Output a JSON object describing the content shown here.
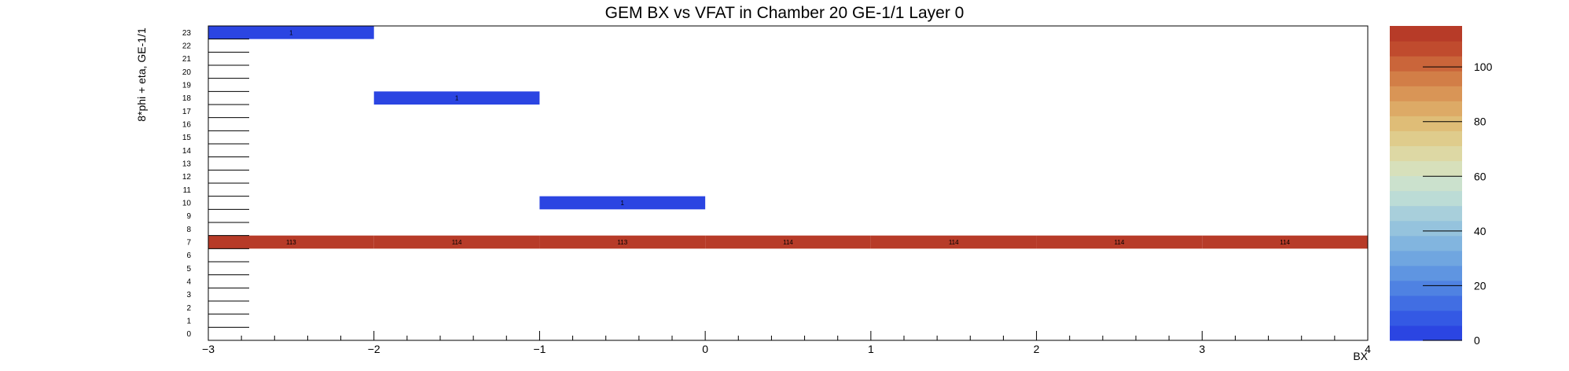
{
  "chart_data": {
    "type": "heatmap",
    "title": "GEM BX vs VFAT in Chamber 20 GE-1/1 Layer 0",
    "xlabel": "BX",
    "ylabel": "8*phi + eta, GE-1/1",
    "xlim": [
      -3,
      4
    ],
    "ylim": [
      0,
      24
    ],
    "x_tick_labels": [
      "−3",
      "−2",
      "−1",
      "0",
      "1",
      "2",
      "3",
      "4"
    ],
    "y_tick_labels": [
      "0",
      "1",
      "2",
      "3",
      "4",
      "5",
      "6",
      "7",
      "8",
      "9",
      "10",
      "11",
      "12",
      "13",
      "14",
      "15",
      "16",
      "17",
      "18",
      "19",
      "20",
      "21",
      "22",
      "23"
    ],
    "x_bin_width": 1,
    "cells": [
      {
        "x": -2.5,
        "y": 23,
        "value": 1,
        "label": "1"
      },
      {
        "x": -1.5,
        "y": 18,
        "value": 1,
        "label": "1"
      },
      {
        "x": -0.5,
        "y": 10,
        "value": 1,
        "label": "1"
      },
      {
        "x": -2.5,
        "y": 7,
        "value": 113,
        "label": "113"
      },
      {
        "x": -1.5,
        "y": 7,
        "value": 114,
        "label": "114"
      },
      {
        "x": -0.5,
        "y": 7,
        "value": 113,
        "label": "113"
      },
      {
        "x": 0.5,
        "y": 7,
        "value": 114,
        "label": "114"
      },
      {
        "x": 1.5,
        "y": 7,
        "value": 114,
        "label": "114"
      },
      {
        "x": 2.5,
        "y": 7,
        "value": 114,
        "label": "114"
      },
      {
        "x": 3.5,
        "y": 7,
        "value": 114,
        "label": "114"
      }
    ],
    "colorbar": {
      "range": [
        0,
        115
      ],
      "tick_values": [
        0,
        20,
        40,
        60,
        80,
        100
      ],
      "tick_labels": [
        "0",
        "20",
        "40",
        "60",
        "80",
        "100"
      ],
      "palette": [
        "#2b45e2",
        "#3459e4",
        "#416ee3",
        "#4f82e2",
        "#5f95e1",
        "#70a6e0",
        "#82b5df",
        "#95c3dd",
        "#a8cfdb",
        "#bcdcd6",
        "#cbe1cd",
        "#d7e0bb",
        "#ddd8a4",
        "#dfcc8c",
        "#dfbd77",
        "#ddaa66",
        "#d99556",
        "#d27e47",
        "#ca653a",
        "#c04b2e",
        "#b73b28"
      ]
    },
    "grid": false,
    "legend": "colorbar-right"
  }
}
